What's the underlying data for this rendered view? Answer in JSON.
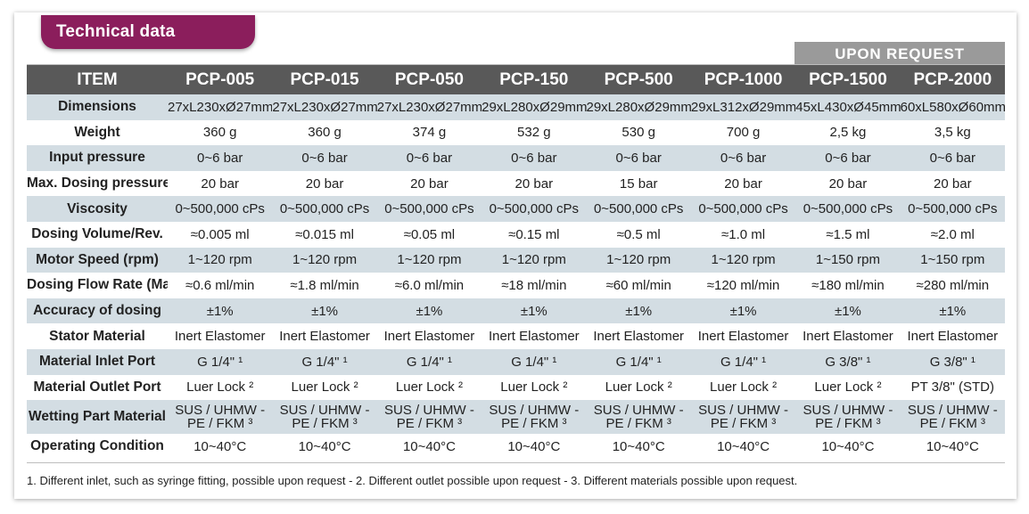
{
  "title": "Technical data",
  "upon_request": "UPON REQUEST",
  "headers": [
    "ITEM",
    "PCP-005",
    "PCP-015",
    "PCP-050",
    "PCP-150",
    "PCP-500",
    "PCP-1000",
    "PCP-1500",
    "PCP-2000"
  ],
  "rows": [
    {
      "label": "Dimensions",
      "values": [
        "27xL230xØ27mm",
        "27xL230xØ27mm",
        "27xL230xØ27mm",
        "29xL280xØ29mm",
        "29xL280xØ29mm",
        "29xL312xØ29mm",
        "45xL430xØ45mm",
        "60xL580xØ60mm"
      ]
    },
    {
      "label": "Weight",
      "values": [
        "360 g",
        "360 g",
        "374 g",
        "532 g",
        "530 g",
        "700 g",
        "2,5 kg",
        "3,5 kg"
      ]
    },
    {
      "label": "Input pressure",
      "values": [
        "0~6 bar",
        "0~6 bar",
        "0~6 bar",
        "0~6 bar",
        "0~6 bar",
        "0~6 bar",
        "0~6 bar",
        "0~6 bar"
      ]
    },
    {
      "label": "Max. Dosing pressure",
      "values": [
        "20 bar",
        "20 bar",
        "20 bar",
        "20 bar",
        "15 bar",
        "20 bar",
        "20 bar",
        "20 bar"
      ]
    },
    {
      "label": "Viscosity",
      "values": [
        "0~500,000 cPs",
        "0~500,000 cPs",
        "0~500,000 cPs",
        "0~500,000 cPs",
        "0~500,000 cPs",
        "0~500,000 cPs",
        "0~500,000 cPs",
        "0~500,000 cPs"
      ]
    },
    {
      "label": "Dosing Volume/Rev.",
      "values": [
        "≈0.005 ml",
        "≈0.015 ml",
        "≈0.05 ml",
        "≈0.15 ml",
        "≈0.5 ml",
        "≈1.0 ml",
        "≈1.5 ml",
        "≈2.0 ml"
      ]
    },
    {
      "label": "Motor Speed (rpm)",
      "values": [
        "1~120 rpm",
        "1~120 rpm",
        "1~120 rpm",
        "1~120 rpm",
        "1~120 rpm",
        "1~120 rpm",
        "1~150 rpm",
        "1~150 rpm"
      ]
    },
    {
      "label": "Dosing Flow Rate (Max.)",
      "values": [
        "≈0.6 ml/min",
        "≈1.8 ml/min",
        "≈6.0 ml/min",
        "≈18 ml/min",
        "≈60 ml/min",
        "≈120 ml/min",
        "≈180 ml/min",
        "≈280 ml/min"
      ]
    },
    {
      "label": "Accuracy of dosing",
      "values": [
        "±1%",
        "±1%",
        "±1%",
        "±1%",
        "±1%",
        "±1%",
        "±1%",
        "±1%"
      ]
    },
    {
      "label": "Stator Material",
      "values": [
        "Inert Elastomer",
        "Inert Elastomer",
        "Inert Elastomer",
        "Inert Elastomer",
        "Inert Elastomer",
        "Inert Elastomer",
        "Inert Elastomer",
        "Inert Elastomer"
      ]
    },
    {
      "label": "Material Inlet Port",
      "values": [
        "G 1/4\" ¹",
        "G 1/4\" ¹",
        "G 1/4\" ¹",
        "G 1/4\" ¹",
        "G 1/4\" ¹",
        "G 1/4\" ¹",
        "G 3/8\" ¹",
        "G 3/8\" ¹"
      ]
    },
    {
      "label": "Material Outlet Port",
      "values": [
        "Luer Lock ²",
        "Luer Lock ²",
        "Luer Lock ²",
        "Luer Lock ²",
        "Luer Lock ²",
        "Luer Lock ²",
        "Luer Lock ²",
        "PT 3/8\" (STD)"
      ]
    },
    {
      "label": "Wetting Part Material",
      "values": [
        "SUS / UHMW -|PE / FKM ³",
        "SUS / UHMW -|PE / FKM ³",
        "SUS / UHMW -|PE / FKM ³",
        "SUS / UHMW -|PE / FKM ³",
        "SUS / UHMW -|PE / FKM ³",
        "SUS / UHMW -|PE / FKM ³",
        "SUS / UHMW -|PE / FKM ³",
        "SUS / UHMW -|PE / FKM ³"
      ]
    },
    {
      "label": "Operating Condition",
      "values": [
        "10~40°C",
        "10~40°C",
        "10~40°C",
        "10~40°C",
        "10~40°C",
        "10~40°C",
        "10~40°C",
        "10~40°C"
      ]
    }
  ],
  "footnote": "1. Different inlet, such as syringe fitting, possible upon request - 2. Different outlet possible upon request - 3. Different materials possible upon request.",
  "colors": {
    "title_tab": "#8b1e5c",
    "header": "#595959",
    "upon_request": "#9a9a9a",
    "row_shade": "#d3dde3"
  }
}
